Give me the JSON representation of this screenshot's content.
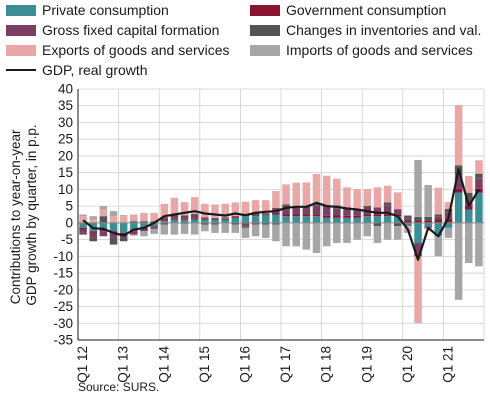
{
  "colors": {
    "private": "#3b8f94",
    "government": "#8b1531",
    "gfcf": "#7b3f64",
    "inventories": "#555555",
    "exports": "#e9a7a7",
    "imports": "#a6a6a6",
    "gdp": "#1a1a1a"
  },
  "chart_data": {
    "type": "bar",
    "stacked": true,
    "ylabel_lines": [
      "Contributions to year-on-year",
      "GDP growth by quarter, in p.p."
    ],
    "ylim": [
      -35,
      40
    ],
    "yticks": [
      -35,
      -30,
      -25,
      -20,
      -15,
      -10,
      -5,
      0,
      5,
      10,
      15,
      20,
      25,
      30,
      35,
      40
    ],
    "x_tick_labels": [
      "Q1 12",
      "Q1 13",
      "Q1 14",
      "Q1 15",
      "Q1 16",
      "Q1 17",
      "Q1 18",
      "Q1 19",
      "Q1 20",
      "Q1 21"
    ],
    "grid": true,
    "legend_position": "top",
    "legend": [
      {
        "key": "private",
        "label": "Private consumption",
        "kind": "bar"
      },
      {
        "key": "government",
        "label": "Government consumption",
        "kind": "bar"
      },
      {
        "key": "gfcf",
        "label": "Gross fixed capital formation",
        "kind": "bar"
      },
      {
        "key": "inventories",
        "label": "Changes in inventories and val.",
        "kind": "bar"
      },
      {
        "key": "exports",
        "label": "Exports of goods and services",
        "kind": "bar"
      },
      {
        "key": "imports",
        "label": "Imports of goods and services",
        "kind": "bar"
      },
      {
        "key": "gdp",
        "label": "GDP, real growth",
        "kind": "line"
      }
    ],
    "quarters": [
      "Q1 12",
      "Q2 12",
      "Q3 12",
      "Q4 12",
      "Q1 13",
      "Q2 13",
      "Q3 13",
      "Q4 13",
      "Q1 14",
      "Q2 14",
      "Q3 14",
      "Q4 14",
      "Q1 15",
      "Q2 15",
      "Q3 15",
      "Q4 15",
      "Q1 16",
      "Q2 16",
      "Q3 16",
      "Q4 16",
      "Q1 17",
      "Q2 17",
      "Q3 17",
      "Q4 17",
      "Q1 18",
      "Q2 18",
      "Q3 18",
      "Q4 18",
      "Q1 19",
      "Q2 19",
      "Q3 19",
      "Q4 19",
      "Q1 20",
      "Q2 20",
      "Q3 20",
      "Q4 20",
      "Q1 21",
      "Q2 21",
      "Q3 21",
      "Q4 21"
    ],
    "series": [
      {
        "key": "private",
        "values": [
          -1.5,
          -2.5,
          -2,
          -2.5,
          -3,
          -2,
          -1.5,
          -1,
          0.5,
          1,
          1,
          1,
          1,
          1,
          1,
          1.5,
          2,
          2,
          2.5,
          2.5,
          2,
          2,
          2,
          2,
          1.5,
          1.5,
          1.5,
          1.5,
          2,
          2,
          2,
          2,
          -1,
          -6,
          -1,
          -4,
          -1.5,
          9,
          4,
          9
        ]
      },
      {
        "key": "government",
        "values": [
          -0.5,
          -0.5,
          -0.5,
          -0.5,
          -0.5,
          -0.5,
          -0.5,
          -0.3,
          0.2,
          0.2,
          0.2,
          0.2,
          0.2,
          0.2,
          0.2,
          0.3,
          0.3,
          0.3,
          0.3,
          0.5,
          0.5,
          0.5,
          0.6,
          0.6,
          0.6,
          0.7,
          0.6,
          0.6,
          0.6,
          0.6,
          0.6,
          0.6,
          0.7,
          0.8,
          0.8,
          1,
          1.2,
          1.2,
          1,
          1.2
        ]
      },
      {
        "key": "gfcf",
        "values": [
          -1,
          -1.5,
          -1.5,
          -1.5,
          -1,
          -1,
          -0.5,
          -0.5,
          1,
          1,
          1,
          1,
          0.5,
          0.3,
          0.2,
          0.3,
          -1,
          -0.5,
          0,
          1.5,
          2,
          2,
          2,
          2.5,
          2.5,
          2,
          2,
          2,
          2,
          2,
          2.5,
          1.5,
          0.5,
          -4,
          -0.5,
          1,
          2,
          4,
          2,
          3
        ]
      },
      {
        "key": "inventories",
        "values": [
          -0.5,
          -1,
          2,
          -2,
          -1,
          0.5,
          0.5,
          0.5,
          -0.5,
          0.3,
          -0.3,
          0.5,
          -0.5,
          -0.5,
          0.3,
          -0.5,
          -0.5,
          0.5,
          -0.5,
          -0.5,
          1,
          0.5,
          0.5,
          0.5,
          0.5,
          1,
          0.5,
          0,
          0.5,
          -1,
          1,
          -1,
          1,
          1,
          1,
          0.5,
          1,
          3,
          2,
          1.5
        ]
      },
      {
        "key": "exports",
        "values": [
          2,
          1,
          2,
          2,
          2,
          2,
          2.5,
          2.5,
          4,
          5,
          4,
          5,
          4,
          4,
          4,
          4,
          4,
          4,
          4,
          5,
          6,
          7,
          7,
          9,
          9,
          8,
          6,
          6,
          5,
          6,
          5,
          5,
          -1,
          -20,
          -0.5,
          8,
          2,
          18,
          5,
          4
        ]
      },
      {
        "key": "imports",
        "values": [
          0.5,
          1,
          1,
          1.5,
          0.3,
          -0.3,
          -1.5,
          -1.5,
          -3,
          -3.5,
          -3,
          -3.5,
          -2,
          -2.5,
          -3,
          -2.5,
          -3,
          -3.5,
          -4,
          -5,
          -7,
          -7,
          -8,
          -9,
          -7,
          -6,
          -6,
          -5,
          -4,
          -5,
          -5,
          -4,
          -1,
          17,
          9.5,
          -6,
          -3,
          -23,
          -12,
          -13
        ]
      }
    ],
    "gdp": [
      0.8,
      -1.6,
      -1.8,
      -3,
      -3.8,
      -2,
      -1.5,
      0,
      2,
      2.5,
      3,
      3.5,
      2.8,
      2.5,
      2.2,
      2.8,
      2.3,
      3,
      3.3,
      3.5,
      4.5,
      4.8,
      4.8,
      6,
      5,
      4.8,
      4.3,
      4,
      3.5,
      3,
      3,
      2,
      -2,
      -11,
      -1.5,
      -4,
      1.5,
      16,
      5,
      10
    ]
  },
  "source": "Source: SURS."
}
